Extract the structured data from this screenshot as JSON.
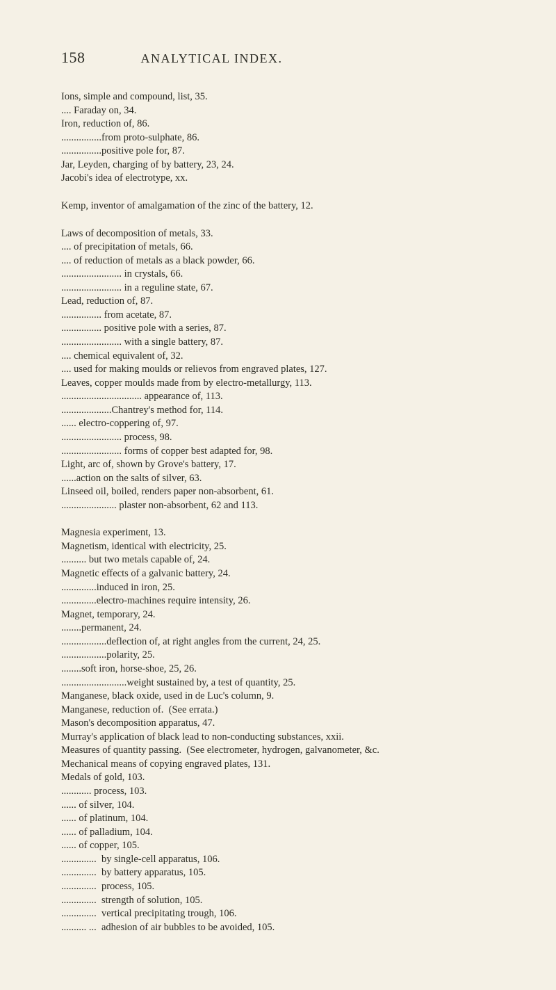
{
  "page": {
    "number": "158",
    "title": "ANALYTICAL INDEX.",
    "background_color": "#f5f1e6",
    "text_color": "#2b2b24",
    "font_family": "Times New Roman",
    "body_fontsize_pt": 11,
    "header_fontsize_pt": 14
  },
  "blocks": [
    {
      "lines": [
        {
          "indent": 0,
          "text": "Ions, simple and compound, list, 35."
        },
        {
          "indent": 0,
          "text": ".... Faraday on, 34."
        },
        {
          "indent": 0,
          "text": "Iron, reduction of, 86."
        },
        {
          "indent": 0,
          "text": "................from proto-sulphate, 86."
        },
        {
          "indent": 0,
          "text": "................positive pole for, 87."
        },
        {
          "indent": 0,
          "text": "Jar, Leyden, charging of by battery, 23, 24."
        },
        {
          "indent": 0,
          "text": "Jacobi's idea of electrotype, xx."
        }
      ]
    },
    {
      "lines": [
        {
          "indent": 0,
          "text": "Kemp, inventor of amalgamation of the zinc of the battery, 12."
        }
      ]
    },
    {
      "lines": [
        {
          "indent": 0,
          "text": "Laws of decomposition of metals, 33."
        },
        {
          "indent": 0,
          "text": ".... of precipitation of metals, 66."
        },
        {
          "indent": 0,
          "text": ".... of reduction of metals as a black powder, 66."
        },
        {
          "indent": 0,
          "text": "........................ in crystals, 66."
        },
        {
          "indent": 0,
          "text": "........................ in a reguline state, 67."
        },
        {
          "indent": 0,
          "text": "Lead, reduction of, 87."
        },
        {
          "indent": 0,
          "text": "................ from acetate, 87."
        },
        {
          "indent": 0,
          "text": "................ positive pole with a series, 87."
        },
        {
          "indent": 0,
          "text": "........................ with a single battery, 87."
        },
        {
          "indent": 0,
          "text": ".... chemical equivalent of, 32."
        },
        {
          "indent": 0,
          "text": ".... used for making moulds or relievos from engraved plates, 127."
        },
        {
          "indent": 0,
          "text": "Leaves, copper moulds made from by electro-metallurgy, 113."
        },
        {
          "indent": 0,
          "text": "................................ appearance of, 113."
        },
        {
          "indent": 0,
          "text": "....................Chantrey's method for, 114."
        },
        {
          "indent": 0,
          "text": "...... electro-coppering of, 97."
        },
        {
          "indent": 0,
          "text": "........................ process, 98."
        },
        {
          "indent": 0,
          "text": "........................ forms of copper best adapted for, 98."
        },
        {
          "indent": 0,
          "text": "Light, arc of, shown by Grove's battery, 17."
        },
        {
          "indent": 0,
          "text": "......action on the salts of silver, 63."
        },
        {
          "indent": 0,
          "text": "Linseed oil, boiled, renders paper non-absorbent, 61."
        },
        {
          "indent": 0,
          "text": "...................... plaster non-absorbent, 62 and 113."
        }
      ]
    },
    {
      "lines": [
        {
          "indent": 0,
          "text": "Magnesia experiment, 13."
        },
        {
          "indent": 0,
          "text": "Magnetism, identical with electricity, 25."
        },
        {
          "indent": 0,
          "text": ".......... but two metals capable of, 24."
        },
        {
          "indent": 0,
          "text": "Magnetic effects of a galvanic battery, 24."
        },
        {
          "indent": 0,
          "text": "..............induced in iron, 25."
        },
        {
          "indent": 0,
          "text": "..............electro-machines require intensity, 26."
        },
        {
          "indent": 0,
          "text": "Magnet, temporary, 24."
        },
        {
          "indent": 0,
          "text": "........permanent, 24."
        },
        {
          "indent": 0,
          "text": "..................deflection of, at right angles from the current, 24, 25."
        },
        {
          "indent": 0,
          "text": "..................polarity, 25."
        },
        {
          "indent": 0,
          "text": "........soft iron, horse-shoe, 25, 26."
        },
        {
          "indent": 0,
          "text": "..........................weight sustained by, a test of quantity, 25."
        },
        {
          "indent": 0,
          "text": "Manganese, black oxide, used in de Luc's column, 9."
        },
        {
          "indent": 0,
          "text": "Manganese, reduction of.  (See errata.)"
        },
        {
          "indent": 0,
          "text": "Mason's decomposition apparatus, 47."
        },
        {
          "indent": 0,
          "text": "Murray's application of black lead to non-conducting substances, xxii."
        },
        {
          "indent": 0,
          "text": "Measures of quantity passing.  (See electrometer, hydrogen, galvanometer, &c."
        },
        {
          "indent": 0,
          "text": "Mechanical means of copying engraved plates, 131."
        },
        {
          "indent": 0,
          "text": "Medals of gold, 103."
        },
        {
          "indent": 0,
          "text": "............ process, 103."
        },
        {
          "indent": 0,
          "text": "...... of silver, 104."
        },
        {
          "indent": 0,
          "text": "...... of platinum, 104."
        },
        {
          "indent": 0,
          "text": "...... of palladium, 104."
        },
        {
          "indent": 0,
          "text": "...... of copper, 105."
        },
        {
          "indent": 0,
          "text": "..............  by single-cell apparatus, 106."
        },
        {
          "indent": 0,
          "text": "..............  by battery apparatus, 105."
        },
        {
          "indent": 0,
          "text": "..............  process, 105."
        },
        {
          "indent": 0,
          "text": "..............  strength of solution, 105."
        },
        {
          "indent": 0,
          "text": "..............  vertical precipitating trough, 106."
        },
        {
          "indent": 0,
          "text": ".......... ...  adhesion of air bubbles to be avoided, 105."
        }
      ]
    }
  ]
}
